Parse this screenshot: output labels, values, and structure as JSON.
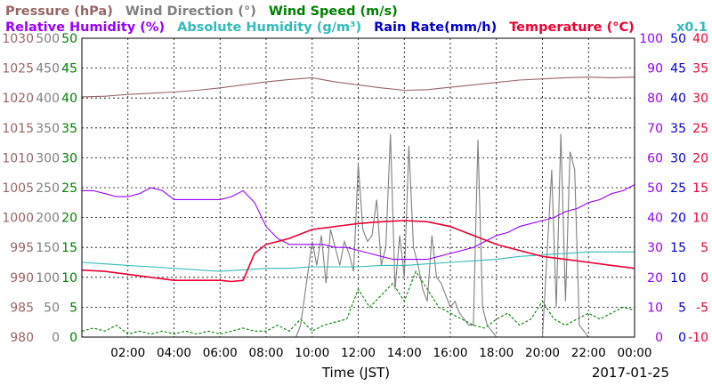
{
  "chart_data": {
    "type": "line",
    "xlabel": "Time (JST)",
    "date": "2017-01-25",
    "x_ticks": [
      "02:00",
      "04:00",
      "06:00",
      "08:00",
      "10:00",
      "12:00",
      "14:00",
      "16:00",
      "18:00",
      "20:00",
      "22:00",
      "00:00"
    ],
    "x_range_hours": [
      0,
      24
    ],
    "grid": true,
    "legend": {
      "row1": [
        {
          "key": "pressure",
          "text": "Pressure (hPa)",
          "color": "#996666"
        },
        {
          "key": "wind_dir",
          "text": "Wind Direction (°)",
          "color": "#808080"
        },
        {
          "key": "wind_speed",
          "text": "Wind Speed (m/s)",
          "color": "#008000"
        }
      ],
      "row2": [
        {
          "key": "rh",
          "text": "Relative Humidity (%)",
          "color": "#9900ff"
        },
        {
          "key": "ah",
          "text": "Absolute Humidity (g/m³)",
          "color": "#33bbbb"
        },
        {
          "key": "rain",
          "text": "Rain Rate(mm/h)",
          "color": "#0000cc"
        },
        {
          "key": "temp",
          "text": "Temperature (°C)",
          "color": "#ee0033"
        }
      ],
      "ah_scale_note": "x0.1"
    },
    "axes": {
      "pressure": {
        "color": "#996666",
        "range": [
          980,
          1030
        ],
        "ticks": [
          "980",
          "985",
          "990",
          "995",
          "1000",
          "1005",
          "1010",
          "1015",
          "1020",
          "1025",
          "1030"
        ]
      },
      "wind_dir": {
        "color": "#808080",
        "range": [
          0,
          500
        ],
        "ticks": [
          "0",
          "50",
          "100",
          "150",
          "200",
          "250",
          "300",
          "350",
          "400",
          "450",
          "500"
        ]
      },
      "wind_speed": {
        "color": "#008000",
        "range": [
          0,
          50
        ],
        "ticks": [
          "0",
          "5",
          "10",
          "15",
          "20",
          "25",
          "30",
          "35",
          "40",
          "45",
          "50"
        ]
      },
      "rh": {
        "color": "#9900ff",
        "range": [
          0,
          100
        ],
        "ticks": [
          "0",
          "10",
          "20",
          "30",
          "40",
          "50",
          "60",
          "70",
          "80",
          "90",
          "100"
        ]
      },
      "rain": {
        "color": "#0000cc",
        "range": [
          0,
          50
        ],
        "ticks": [
          "0",
          "5",
          "10",
          "15",
          "20",
          "25",
          "30",
          "35",
          "40",
          "45",
          "50"
        ]
      },
      "temp": {
        "color": "#ee0033",
        "range": [
          -10,
          40
        ],
        "ticks": [
          "-10",
          "-5",
          "0",
          "5",
          "10",
          "15",
          "20",
          "25",
          "30",
          "35",
          "40"
        ]
      }
    },
    "series": [
      {
        "name": "Pressure (hPa)",
        "key": "pressure",
        "axis": "pressure",
        "color": "#996666",
        "x": [
          0,
          1,
          2,
          3,
          4,
          5,
          6,
          7,
          8,
          9,
          10,
          11,
          12,
          13,
          14,
          15,
          16,
          17,
          18,
          19,
          20,
          21,
          22,
          23,
          24
        ],
        "values": [
          1020.2,
          1020.3,
          1020.6,
          1020.8,
          1021.0,
          1021.3,
          1021.7,
          1022.2,
          1022.7,
          1023.1,
          1023.4,
          1022.7,
          1022.2,
          1021.7,
          1021.3,
          1021.4,
          1021.8,
          1022.2,
          1022.6,
          1023.0,
          1023.2,
          1023.4,
          1023.5,
          1023.4,
          1023.5
        ]
      },
      {
        "name": "Relative Humidity (%)",
        "key": "rh",
        "axis": "rh",
        "color": "#9900ff",
        "x": [
          0,
          0.5,
          1,
          1.5,
          2,
          2.5,
          3,
          3.5,
          4,
          4.5,
          5,
          5.5,
          6,
          6.5,
          7,
          7.5,
          8,
          8.5,
          9,
          9.5,
          10,
          10.5,
          11,
          11.5,
          12,
          12.5,
          13,
          13.5,
          14,
          14.5,
          15,
          15.5,
          16,
          16.5,
          17,
          17.5,
          18,
          18.5,
          19,
          19.5,
          20,
          20.5,
          21,
          21.5,
          22,
          22.5,
          23,
          23.5,
          24
        ],
        "values": [
          49,
          49,
          48,
          47,
          47,
          48,
          50,
          49,
          46,
          46,
          46,
          46,
          46,
          47,
          49,
          45,
          37,
          33,
          31,
          31,
          31,
          31,
          30,
          30,
          29,
          28,
          27,
          26,
          26,
          26,
          26,
          27,
          28,
          29,
          30,
          32,
          34,
          35,
          37,
          38,
          39,
          40,
          42,
          43,
          45,
          46,
          48,
          49,
          51
        ]
      },
      {
        "name": "Absolute Humidity (g/m³)",
        "key": "ah",
        "axis": "rh",
        "color": "#33bbbb",
        "x": [
          0,
          1,
          2,
          3,
          4,
          5,
          6,
          7,
          8,
          9,
          10,
          11,
          12,
          13,
          14,
          15,
          16,
          17,
          18,
          19,
          20,
          21,
          22,
          23,
          24
        ],
        "values": [
          25,
          24.5,
          24,
          23.5,
          23,
          22.5,
          22,
          22.5,
          23,
          23,
          23.5,
          23.5,
          23.5,
          24,
          24,
          24.5,
          25,
          25.5,
          26,
          27,
          27.5,
          28,
          28.5,
          28.5,
          28.5
        ]
      },
      {
        "name": "Temperature (°C)",
        "key": "temp",
        "axis": "temp",
        "color": "#ee0033",
        "x": [
          0,
          1,
          2,
          3,
          4,
          5,
          6,
          6.5,
          7,
          7.5,
          8,
          9,
          10,
          11,
          12,
          13,
          14,
          15,
          16,
          17,
          18,
          19,
          20,
          21,
          22,
          23,
          24
        ],
        "values": [
          1.2,
          1,
          0.5,
          0,
          -0.5,
          -0.5,
          -0.5,
          -0.7,
          -0.5,
          4,
          5.5,
          6.5,
          8,
          8.5,
          9,
          9.3,
          9.5,
          9.3,
          8.5,
          7,
          5.5,
          4.5,
          3.5,
          3,
          2.5,
          2,
          1.5
        ]
      },
      {
        "name": "Wind Speed (m/s)",
        "key": "wind_speed",
        "axis": "wind_speed",
        "color": "#008000",
        "x": [
          0,
          0.5,
          1,
          1.5,
          2,
          2.5,
          3,
          3.5,
          4,
          4.5,
          5,
          5.5,
          6,
          6.5,
          7,
          7.5,
          8,
          8.5,
          9,
          9.5,
          10,
          10.5,
          11,
          11.5,
          12,
          12.5,
          13,
          13.5,
          14,
          14.5,
          15,
          15.5,
          16,
          16.5,
          17,
          17.5,
          18,
          18.5,
          19,
          19.5,
          20,
          20.5,
          21,
          21.5,
          22,
          22.5,
          23,
          23.5,
          24
        ],
        "values": [
          1,
          1.5,
          1,
          2,
          0.5,
          1,
          0.5,
          1,
          0.5,
          1,
          0.5,
          1,
          0.5,
          1,
          1.5,
          1,
          1,
          2,
          1,
          3,
          1,
          2,
          2.5,
          3,
          8,
          5,
          7,
          9,
          6,
          11,
          8,
          5,
          4,
          3,
          2,
          1.5,
          3,
          4,
          2,
          3,
          6,
          3,
          2,
          3,
          4,
          3,
          4,
          5,
          4.5
        ]
      },
      {
        "name": "Wind Direction (°)",
        "key": "wind_dir",
        "axis": "wind_dir",
        "color": "#808080",
        "x": [
          0,
          9.3,
          9.5,
          10,
          10.2,
          10.4,
          10.6,
          10.8,
          11,
          11.2,
          11.4,
          11.6,
          11.8,
          12,
          12.2,
          12.4,
          12.6,
          12.8,
          13,
          13.2,
          13.4,
          13.6,
          13.8,
          14,
          14.2,
          14.4,
          14.6,
          14.8,
          15,
          15.2,
          15.4,
          15.6,
          15.8,
          16,
          16.2,
          16.4,
          16.6,
          16.8,
          17,
          17.2,
          17.4,
          17.6,
          17.8,
          18,
          20,
          20.4,
          20.6,
          20.8,
          21,
          21.2,
          21.4,
          21.6,
          21.8,
          22,
          24
        ],
        "values": [
          0,
          0,
          20,
          160,
          120,
          170,
          90,
          180,
          150,
          120,
          160,
          140,
          110,
          290,
          180,
          160,
          170,
          230,
          120,
          150,
          340,
          80,
          170,
          100,
          320,
          150,
          120,
          80,
          60,
          170,
          100,
          90,
          70,
          50,
          60,
          40,
          30,
          20,
          20,
          330,
          50,
          20,
          10,
          0,
          0,
          280,
          50,
          340,
          60,
          310,
          280,
          20,
          10,
          0,
          0
        ]
      },
      {
        "name": "Rain Rate(mm/h)",
        "key": "rain",
        "axis": "rain",
        "color": "#0000cc",
        "x": [
          0,
          24
        ],
        "values": [
          0,
          0
        ]
      }
    ]
  }
}
